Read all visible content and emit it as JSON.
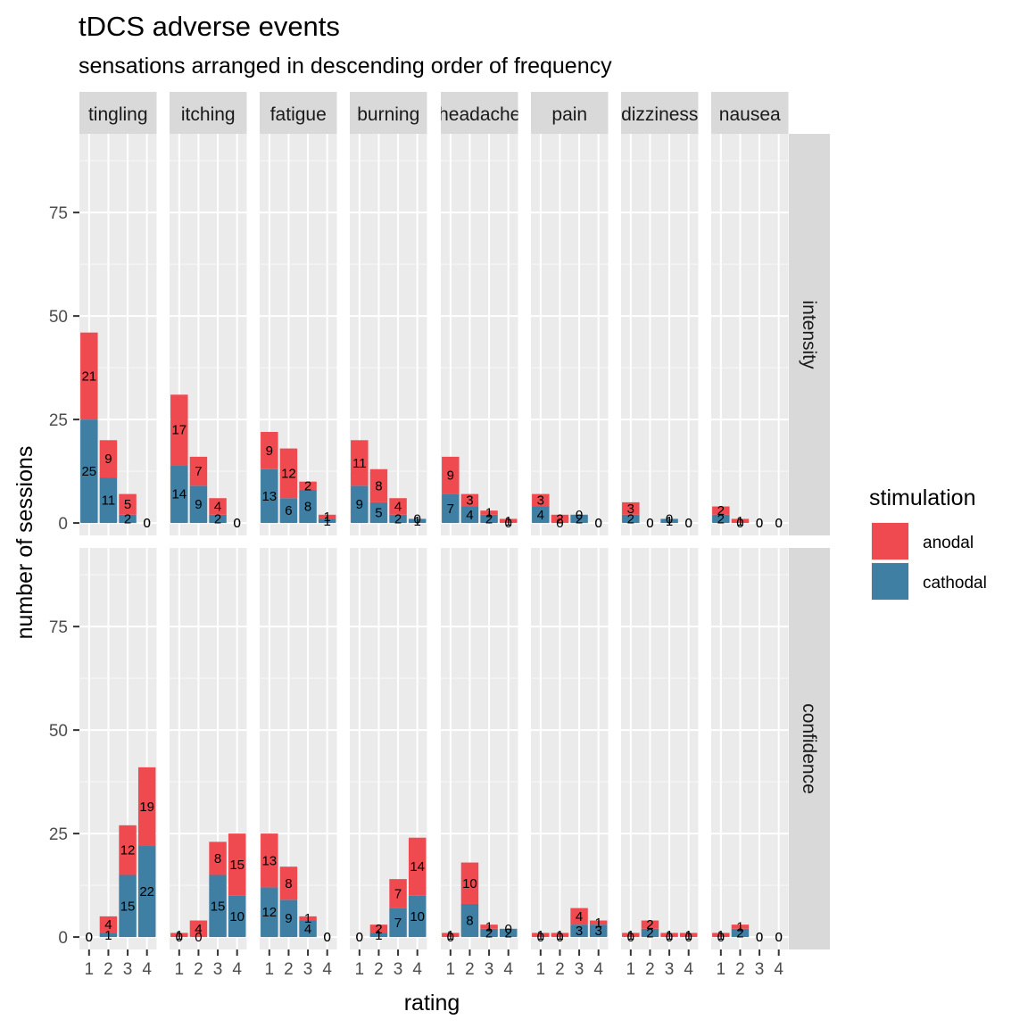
{
  "chart_data": {
    "type": "bar",
    "title": "tDCS adverse events",
    "subtitle": "sensations arranged in descending order of frequency",
    "xlabel": "rating",
    "ylabel": "number of sessions",
    "x_ticks": [
      "1",
      "2",
      "3",
      "4"
    ],
    "y_ticks": [
      0,
      25,
      50,
      75
    ],
    "ylim": [
      -3,
      94
    ],
    "stacked": true,
    "facet_columns": [
      "tingling",
      "itching",
      "fatigue",
      "burning",
      "headache",
      "pain",
      "dizziness",
      "nausea"
    ],
    "facet_rows": [
      "intensity",
      "confidence"
    ],
    "legend": {
      "title": "stimulation",
      "position": "right",
      "entries": [
        {
          "name": "anodal",
          "color": "#EE4A50"
        },
        {
          "name": "cathodal",
          "color": "#3E7FA3"
        }
      ]
    },
    "panels": [
      {
        "row": "intensity",
        "col": "tingling",
        "cathodal": [
          25,
          11,
          2,
          0
        ],
        "anodal": [
          21,
          9,
          5,
          0
        ]
      },
      {
        "row": "intensity",
        "col": "itching",
        "cathodal": [
          14,
          9,
          2,
          0
        ],
        "anodal": [
          17,
          7,
          4,
          0
        ]
      },
      {
        "row": "intensity",
        "col": "fatigue",
        "cathodal": [
          13,
          6,
          8,
          1
        ],
        "anodal": [
          9,
          12,
          2,
          1
        ]
      },
      {
        "row": "intensity",
        "col": "burning",
        "cathodal": [
          9,
          5,
          2,
          1
        ],
        "anodal": [
          11,
          8,
          4,
          0
        ]
      },
      {
        "row": "intensity",
        "col": "headache",
        "cathodal": [
          7,
          4,
          2,
          0
        ],
        "anodal": [
          9,
          3,
          1,
          1
        ]
      },
      {
        "row": "intensity",
        "col": "pain",
        "cathodal": [
          4,
          0,
          2,
          0
        ],
        "anodal": [
          3,
          2,
          0,
          0
        ]
      },
      {
        "row": "intensity",
        "col": "dizziness",
        "cathodal": [
          2,
          0,
          1,
          0
        ],
        "anodal": [
          3,
          0,
          0,
          0
        ]
      },
      {
        "row": "intensity",
        "col": "nausea",
        "cathodal": [
          2,
          0,
          0,
          0
        ],
        "anodal": [
          2,
          1,
          0,
          0
        ]
      },
      {
        "row": "confidence",
        "col": "tingling",
        "cathodal": [
          0,
          1,
          15,
          22
        ],
        "anodal": [
          0,
          4,
          12,
          19
        ]
      },
      {
        "row": "confidence",
        "col": "itching",
        "cathodal": [
          0,
          0,
          15,
          10
        ],
        "anodal": [
          1,
          4,
          8,
          15
        ]
      },
      {
        "row": "confidence",
        "col": "fatigue",
        "cathodal": [
          12,
          9,
          4,
          0
        ],
        "anodal": [
          13,
          8,
          1,
          0
        ]
      },
      {
        "row": "confidence",
        "col": "burning",
        "cathodal": [
          0,
          1,
          7,
          10
        ],
        "anodal": [
          0,
          2,
          7,
          14
        ]
      },
      {
        "row": "confidence",
        "col": "headache",
        "cathodal": [
          0,
          8,
          2,
          2
        ],
        "anodal": [
          1,
          10,
          1,
          0
        ]
      },
      {
        "row": "confidence",
        "col": "pain",
        "cathodal": [
          0,
          0,
          3,
          3
        ],
        "anodal": [
          1,
          1,
          4,
          1
        ]
      },
      {
        "row": "confidence",
        "col": "dizziness",
        "cathodal": [
          0,
          2,
          0,
          0
        ],
        "anodal": [
          1,
          2,
          1,
          1
        ]
      },
      {
        "row": "confidence",
        "col": "nausea",
        "cathodal": [
          0,
          2,
          0,
          0
        ],
        "anodal": [
          1,
          1,
          0,
          0
        ]
      }
    ]
  }
}
